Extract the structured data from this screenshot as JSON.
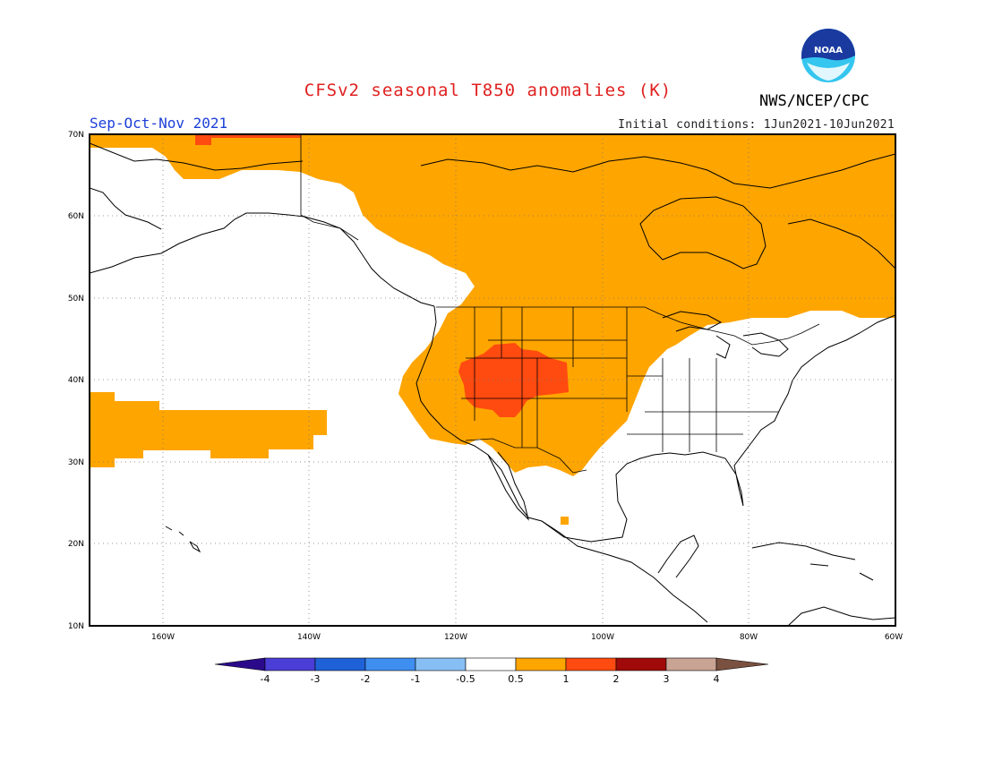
{
  "title": "CFSv2 seasonal T850 anomalies (K)",
  "agency": "NWS/NCEP/CPC",
  "logo_text": "NOAA",
  "season": "Sep-Oct-Nov 2021",
  "initial_conditions": "Initial conditions: 1Jun2021-10Jun2021",
  "lat_labels": [
    "70N",
    "60N",
    "50N",
    "40N",
    "30N",
    "20N",
    "10N"
  ],
  "lon_labels": [
    "160W",
    "140W",
    "120W",
    "100W",
    "80W",
    "60W"
  ],
  "colorbar": {
    "labels": [
      "-4",
      "-3",
      "-2",
      "-1",
      "-0.5",
      "0.5",
      "1",
      "2",
      "3",
      "4"
    ],
    "colors": [
      "#2a0a8a",
      "#4a3ed6",
      "#1f62d8",
      "#3f8ff0",
      "#87bff5",
      "#ffffff",
      "#ffa500",
      "#ff4a10",
      "#a00a0a",
      "#c9a393",
      "#7a5040"
    ]
  },
  "colors": {
    "anomaly_0_5_to_1": "#ffa500",
    "anomaly_1_to_2": "#ff4a10",
    "anomaly_2_to_3": "#a00a0a",
    "title": "#e0201f",
    "season": "#1b3fd8"
  }
}
